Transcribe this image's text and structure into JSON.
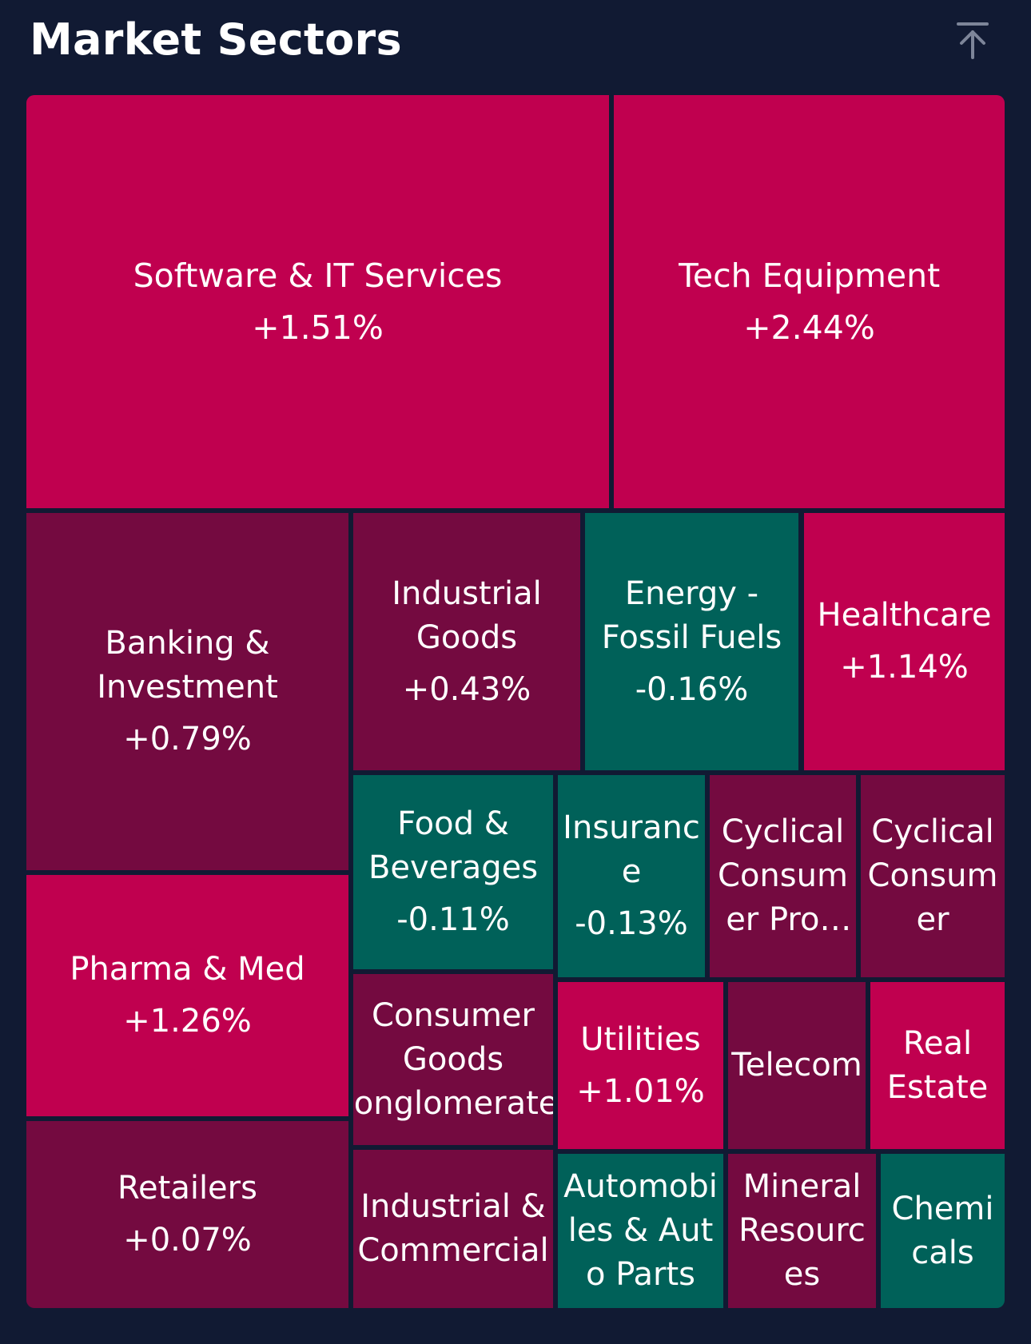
{
  "header": {
    "title": "Market Sectors",
    "scroll_top_icon": "arrow-up-to-top-icon"
  },
  "colors": {
    "background": "#111a33",
    "strong_gain": "#c0004f",
    "mild_gain": "#740a40",
    "loss": "#006159"
  },
  "sectors": [
    {
      "name": "Software & IT Services",
      "change": "+1.51%"
    },
    {
      "name": "Tech Equipment",
      "change": "+2.44%"
    },
    {
      "name": "Banking & Investment",
      "change": "+0.79%"
    },
    {
      "name": "Industrial Goods",
      "change": "+0.43%"
    },
    {
      "name": "Energy - Fossil Fuels",
      "change": "-0.16%"
    },
    {
      "name": "Healthcare",
      "change": "+1.14%"
    },
    {
      "name": "Pharma & Med",
      "change": "+1.26%"
    },
    {
      "name": "Food & Beverages",
      "change": "-0.11%"
    },
    {
      "name": "Insurance",
      "change": "-0.13%"
    },
    {
      "name": "Cyclical Consumer Products",
      "change": ""
    },
    {
      "name": "Cyclical Consumer",
      "change": ""
    },
    {
      "name": "Retailers",
      "change": "+0.07%"
    },
    {
      "name": "Consumer Goods Conglomerates",
      "change": ""
    },
    {
      "name": "Utilities",
      "change": "+1.01%"
    },
    {
      "name": "Telecom",
      "change": ""
    },
    {
      "name": "Real Estate",
      "change": ""
    },
    {
      "name": "Industrial & Commercial",
      "change": ""
    },
    {
      "name": "Automobiles & Auto Parts",
      "change": ""
    },
    {
      "name": "Mineral Resources",
      "change": ""
    },
    {
      "name": "Chemicals",
      "change": ""
    }
  ]
}
